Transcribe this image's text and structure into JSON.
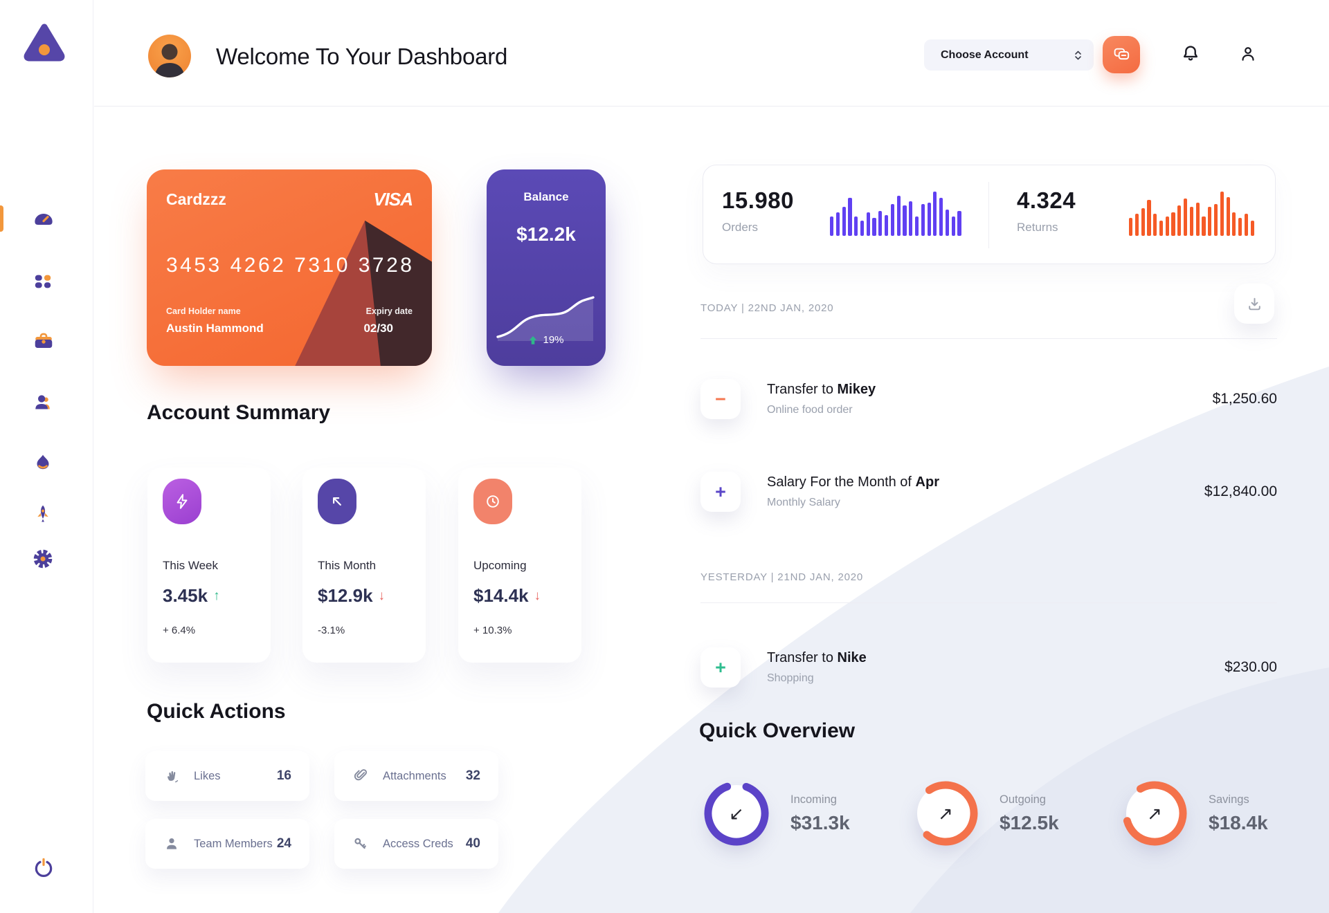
{
  "colors": {
    "primary_purple": "#5646a8",
    "accent_orange": "#f4764f",
    "sidebar_icon_purple": "#4c3f9b",
    "sidebar_icon_orange": "#f2973c",
    "green": "#2eb889",
    "red": "#e8645f"
  },
  "sidebar": {
    "icons": [
      "dashboard-gauge",
      "categories-grid",
      "briefcase",
      "team",
      "activity-flame",
      "rocket",
      "settings-gear"
    ],
    "power_icon": "power"
  },
  "header": {
    "title": "Welcome To Your Dashboard",
    "account_label": "Choose Account",
    "icons": [
      "chat-icon",
      "bell-icon",
      "user-icon"
    ]
  },
  "card": {
    "name": "Cardzzz",
    "brand": "VISA",
    "number": "3453 4262 7310 3728",
    "holder_label": "Card Holder name",
    "holder": "Austin Hammond",
    "expiry_label": "Expiry date",
    "expiry": "02/30"
  },
  "balance": {
    "label": "Balance",
    "value": "$12.2k",
    "change": "19%"
  },
  "stats": {
    "orders": {
      "value": "15.980",
      "label": "Orders",
      "color": "#6040f2",
      "bars": [
        28,
        34,
        42,
        55,
        28,
        22,
        34,
        26,
        36,
        30,
        46,
        58,
        44,
        50,
        28,
        46,
        48,
        64,
        55,
        38,
        28,
        36
      ]
    },
    "returns": {
      "value": "4.324",
      "label": "Returns",
      "color": "#f55a26",
      "bars": [
        26,
        32,
        40,
        52,
        32,
        22,
        28,
        34,
        44,
        54,
        42,
        48,
        28,
        42,
        46,
        64,
        56,
        34,
        26,
        32,
        22
      ]
    }
  },
  "transactions": {
    "today_label": "TODAY | 22ND JAN, 2020",
    "yesterday_label": "YESTERDAY | 21ND JAN, 2020",
    "rows": [
      {
        "sign": "−",
        "accent": "#f4764f",
        "title": "Transfer to ",
        "title_bold": "Mikey",
        "subtitle": "Online food order",
        "amount": "$1,250.60"
      },
      {
        "sign": "+",
        "accent": "#5b47c8",
        "title": "Salary For the Month of ",
        "title_bold": "Apr",
        "subtitle": "Monthly Salary",
        "amount": "$12,840.00"
      },
      {
        "sign": "+",
        "accent": "#2fbd8f",
        "title": "Transfer to ",
        "title_bold": "Nike",
        "subtitle": "Shopping",
        "amount": "$230.00"
      }
    ]
  },
  "account_summary": {
    "heading": "Account Summary",
    "cards": [
      {
        "icon": "lightning-icon",
        "icon_bg": "linear-gradient(150deg,#bb60e2,#9a3fd0)",
        "label": "This Week",
        "value": "3.45k",
        "arrow": "↑",
        "arrow_color": "#2eb889",
        "delta": "+ 6.4%"
      },
      {
        "icon": "arrow-up-left-icon",
        "icon_bg": "#5646a8",
        "label": "This Month",
        "value": "$12.9k",
        "arrow": "↓",
        "arrow_color": "#e8645f",
        "delta": "-3.1%"
      },
      {
        "icon": "clock-icon",
        "icon_bg": "#f2836b",
        "label": "Upcoming",
        "value": "$14.4k",
        "arrow": "↓",
        "arrow_color": "#e8645f",
        "delta": "+ 10.3%"
      }
    ]
  },
  "quick_actions": {
    "heading": "Quick Actions",
    "items": [
      {
        "icon": "wave-hand-icon",
        "label": "Likes",
        "value": "16"
      },
      {
        "icon": "paperclip-icon",
        "label": "Attachments",
        "value": "32"
      },
      {
        "icon": "member-icon",
        "label": "Team Members",
        "value": "24"
      },
      {
        "icon": "key-icon",
        "label": "Access Creds",
        "value": "40"
      }
    ]
  },
  "quick_overview": {
    "heading": "Quick Overview",
    "items": [
      {
        "label": "Incoming",
        "value": "$31.3k",
        "arrow": "↙",
        "color": "#5b43c8",
        "progress": 0.89,
        "rotation": -70
      },
      {
        "label": "Outgoing",
        "value": "$12.5k",
        "arrow": "↗",
        "color": "#f4724b",
        "progress": 0.71,
        "rotation": -125
      },
      {
        "label": "Savings",
        "value": "$18.4k",
        "arrow": "↗",
        "color": "#f4724b",
        "progress": 0.79,
        "rotation": -120
      }
    ]
  }
}
